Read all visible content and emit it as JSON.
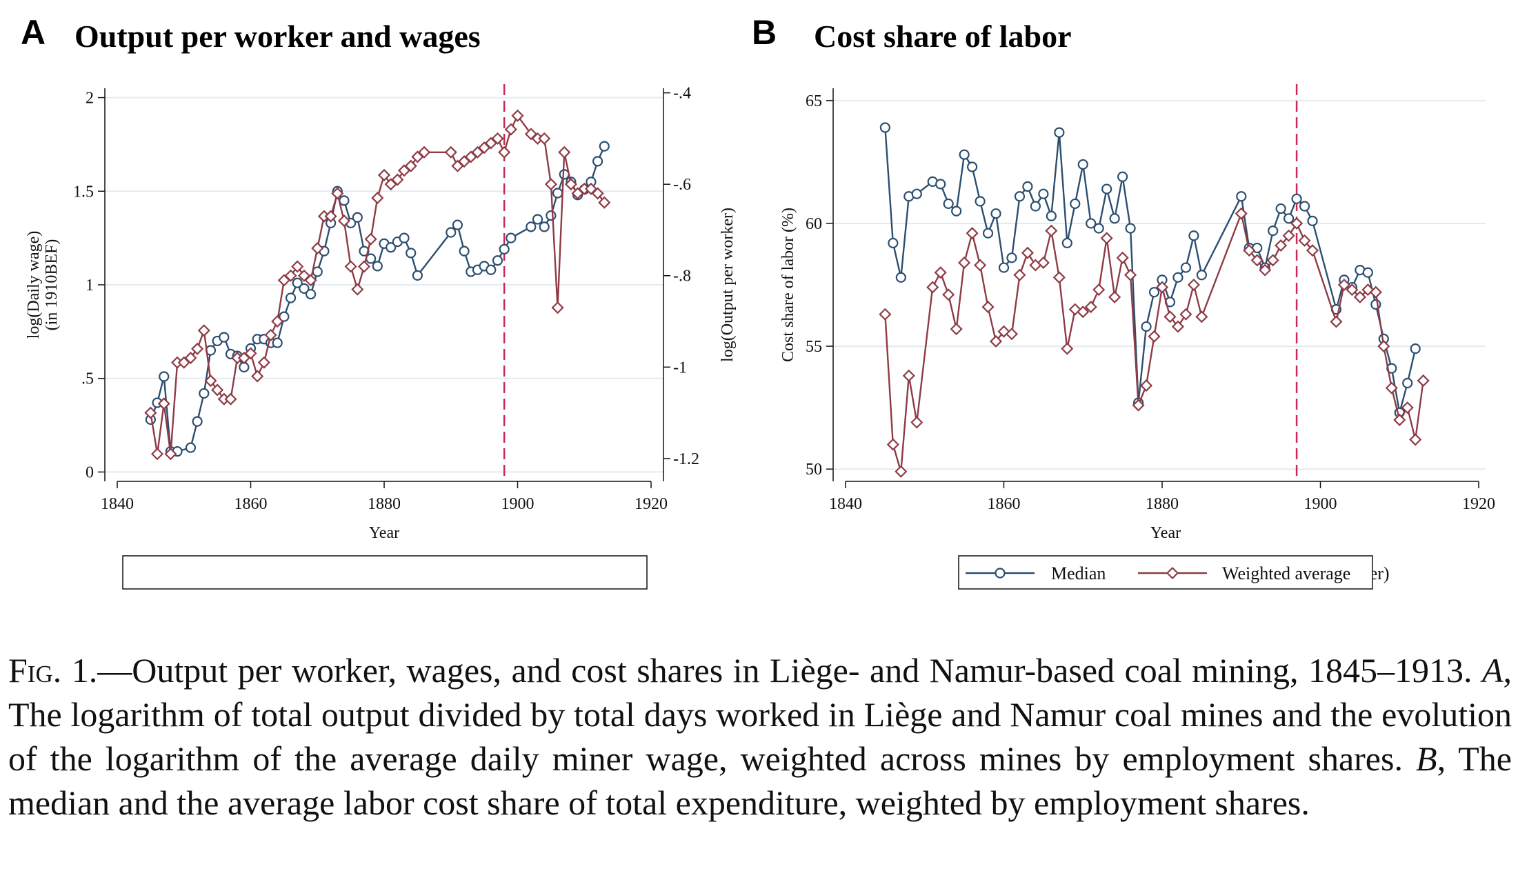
{
  "colors": {
    "blue": "#2b4e70",
    "red": "#8e3b45",
    "vline": "#cc2955",
    "grid": "#e3ebf0"
  },
  "chart_data": [
    {
      "type": "line",
      "panel_letter": "A",
      "title": "Output per worker and wages",
      "xlabel": "Year",
      "ylabel_left_line1": "log(Daily wage)",
      "ylabel_left_line2": "(in 1910BEF)",
      "ylabel_right": "log(Output per worker)",
      "xlim": [
        1840,
        1920
      ],
      "ylim_left": [
        -0.05,
        2.05
      ],
      "ylim_right": [
        -1.25,
        -0.39
      ],
      "x_ticks": [
        "1840",
        "1860",
        "1880",
        "1900",
        "1920"
      ],
      "y_ticks_left": [
        "0",
        ".5",
        "1",
        "1.5",
        "2"
      ],
      "y_ticks_right": [
        "-1.2",
        "-1",
        "-.8",
        "-.6",
        "-.4"
      ],
      "vline_x": 1898,
      "grid": true,
      "legend_position": "bottom",
      "series": [
        {
          "name": "log(Daily wage)",
          "axis": "left",
          "color": "blue",
          "marker": "circle",
          "points": [
            [
              1845,
              0.28
            ],
            [
              1846,
              0.37
            ],
            [
              1847,
              0.51
            ],
            [
              1848,
              0.11
            ],
            [
              1849,
              0.11
            ],
            [
              1851,
              0.13
            ],
            [
              1852,
              0.27
            ],
            [
              1853,
              0.42
            ],
            [
              1854,
              0.65
            ],
            [
              1855,
              0.7
            ],
            [
              1856,
              0.72
            ],
            [
              1857,
              0.63
            ],
            [
              1858,
              0.62
            ],
            [
              1859,
              0.56
            ],
            [
              1860,
              0.66
            ],
            [
              1861,
              0.71
            ],
            [
              1862,
              0.71
            ],
            [
              1863,
              0.69
            ],
            [
              1864,
              0.69
            ],
            [
              1865,
              0.83
            ],
            [
              1866,
              0.93
            ],
            [
              1867,
              1.01
            ],
            [
              1868,
              0.98
            ],
            [
              1869,
              0.95
            ],
            [
              1870,
              1.07
            ],
            [
              1871,
              1.18
            ],
            [
              1872,
              1.33
            ],
            [
              1873,
              1.5
            ],
            [
              1874,
              1.45
            ],
            [
              1875,
              1.33
            ],
            [
              1876,
              1.36
            ],
            [
              1877,
              1.18
            ],
            [
              1878,
              1.14
            ],
            [
              1879,
              1.1
            ],
            [
              1880,
              1.22
            ],
            [
              1881,
              1.2
            ],
            [
              1882,
              1.23
            ],
            [
              1883,
              1.25
            ],
            [
              1884,
              1.17
            ],
            [
              1885,
              1.05
            ],
            [
              1890,
              1.28
            ],
            [
              1891,
              1.32
            ],
            [
              1892,
              1.18
            ],
            [
              1893,
              1.07
            ],
            [
              1894,
              1.08
            ],
            [
              1895,
              1.1
            ],
            [
              1896,
              1.08
            ],
            [
              1897,
              1.13
            ],
            [
              1898,
              1.19
            ],
            [
              1899,
              1.25
            ],
            [
              1902,
              1.31
            ],
            [
              1903,
              1.35
            ],
            [
              1904,
              1.31
            ],
            [
              1905,
              1.37
            ],
            [
              1906,
              1.49
            ],
            [
              1907,
              1.59
            ],
            [
              1908,
              1.55
            ],
            [
              1909,
              1.48
            ],
            [
              1910,
              1.51
            ],
            [
              1911,
              1.55
            ],
            [
              1912,
              1.66
            ],
            [
              1913,
              1.74
            ]
          ]
        },
        {
          "name": "log(Output per worker)",
          "axis": "right",
          "color": "red",
          "marker": "diamond",
          "points": [
            [
              1845,
              -1.1
            ],
            [
              1846,
              -1.19
            ],
            [
              1847,
              -1.08
            ],
            [
              1848,
              -1.19
            ],
            [
              1849,
              -0.99
            ],
            [
              1850,
              -0.99
            ],
            [
              1851,
              -0.98
            ],
            [
              1852,
              -0.96
            ],
            [
              1853,
              -0.92
            ],
            [
              1854,
              -1.03
            ],
            [
              1855,
              -1.05
            ],
            [
              1856,
              -1.07
            ],
            [
              1857,
              -1.07
            ],
            [
              1858,
              -0.98
            ],
            [
              1859,
              -0.98
            ],
            [
              1860,
              -0.97
            ],
            [
              1861,
              -1.02
            ],
            [
              1862,
              -0.99
            ],
            [
              1863,
              -0.93
            ],
            [
              1864,
              -0.9
            ],
            [
              1865,
              -0.81
            ],
            [
              1866,
              -0.8
            ],
            [
              1867,
              -0.78
            ],
            [
              1868,
              -0.8
            ],
            [
              1869,
              -0.81
            ],
            [
              1870,
              -0.74
            ],
            [
              1871,
              -0.67
            ],
            [
              1872,
              -0.67
            ],
            [
              1873,
              -0.62
            ],
            [
              1874,
              -0.68
            ],
            [
              1875,
              -0.78
            ],
            [
              1876,
              -0.83
            ],
            [
              1877,
              -0.78
            ],
            [
              1878,
              -0.72
            ],
            [
              1879,
              -0.63
            ],
            [
              1880,
              -0.58
            ],
            [
              1881,
              -0.6
            ],
            [
              1882,
              -0.59
            ],
            [
              1883,
              -0.57
            ],
            [
              1884,
              -0.56
            ],
            [
              1885,
              -0.54
            ],
            [
              1886,
              -0.53
            ],
            [
              1890,
              -0.53
            ],
            [
              1891,
              -0.56
            ],
            [
              1892,
              -0.55
            ],
            [
              1893,
              -0.54
            ],
            [
              1894,
              -0.53
            ],
            [
              1895,
              -0.52
            ],
            [
              1896,
              -0.51
            ],
            [
              1897,
              -0.5
            ],
            [
              1898,
              -0.53
            ],
            [
              1899,
              -0.48
            ],
            [
              1900,
              -0.45
            ],
            [
              1902,
              -0.49
            ],
            [
              1903,
              -0.5
            ],
            [
              1904,
              -0.5
            ],
            [
              1905,
              -0.6
            ],
            [
              1906,
              -0.87
            ],
            [
              1907,
              -0.53
            ],
            [
              1908,
              -0.6
            ],
            [
              1909,
              -0.62
            ],
            [
              1910,
              -0.61
            ],
            [
              1911,
              -0.61
            ],
            [
              1912,
              -0.62
            ],
            [
              1913,
              -0.64
            ]
          ]
        }
      ]
    },
    {
      "type": "line",
      "panel_letter": "B",
      "title": "Cost share of labor",
      "xlabel": "Year",
      "ylabel": "Cost share of labor (%)",
      "xlim": [
        1840,
        1920
      ],
      "ylim": [
        49.5,
        65.5
      ],
      "x_ticks": [
        "1840",
        "1860",
        "1880",
        "1900",
        "1920"
      ],
      "y_ticks": [
        "50",
        "55",
        "60",
        "65"
      ],
      "vline_x": 1897,
      "grid": true,
      "legend_position": "bottom",
      "series": [
        {
          "name": "Median",
          "color": "blue",
          "marker": "circle",
          "points": [
            [
              1845,
              63.9
            ],
            [
              1846,
              59.2
            ],
            [
              1847,
              57.8
            ],
            [
              1848,
              61.1
            ],
            [
              1849,
              61.2
            ],
            [
              1851,
              61.7
            ],
            [
              1852,
              61.6
            ],
            [
              1853,
              60.8
            ],
            [
              1854,
              60.5
            ],
            [
              1855,
              62.8
            ],
            [
              1856,
              62.3
            ],
            [
              1857,
              60.9
            ],
            [
              1858,
              59.6
            ],
            [
              1859,
              60.4
            ],
            [
              1860,
              58.2
            ],
            [
              1861,
              58.6
            ],
            [
              1862,
              61.1
            ],
            [
              1863,
              61.5
            ],
            [
              1864,
              60.7
            ],
            [
              1865,
              61.2
            ],
            [
              1866,
              60.3
            ],
            [
              1867,
              63.7
            ],
            [
              1868,
              59.2
            ],
            [
              1869,
              60.8
            ],
            [
              1870,
              62.4
            ],
            [
              1871,
              60.0
            ],
            [
              1872,
              59.8
            ],
            [
              1873,
              61.4
            ],
            [
              1874,
              60.2
            ],
            [
              1875,
              61.9
            ],
            [
              1876,
              59.8
            ],
            [
              1877,
              52.7
            ],
            [
              1878,
              55.8
            ],
            [
              1879,
              57.2
            ],
            [
              1880,
              57.7
            ],
            [
              1881,
              56.8
            ],
            [
              1882,
              57.8
            ],
            [
              1883,
              58.2
            ],
            [
              1884,
              59.5
            ],
            [
              1885,
              57.9
            ],
            [
              1890,
              61.1
            ],
            [
              1891,
              59.0
            ],
            [
              1892,
              59.0
            ],
            [
              1893,
              58.2
            ],
            [
              1894,
              59.7
            ],
            [
              1895,
              60.6
            ],
            [
              1896,
              60.2
            ],
            [
              1897,
              61.0
            ],
            [
              1898,
              60.7
            ],
            [
              1899,
              60.1
            ],
            [
              1902,
              56.5
            ],
            [
              1903,
              57.7
            ],
            [
              1904,
              57.4
            ],
            [
              1905,
              58.1
            ],
            [
              1906,
              58.0
            ],
            [
              1907,
              56.7
            ],
            [
              1908,
              55.3
            ],
            [
              1909,
              54.1
            ],
            [
              1910,
              52.3
            ],
            [
              1911,
              53.5
            ],
            [
              1912,
              54.9
            ]
          ]
        },
        {
          "name": "Weighted average",
          "color": "red",
          "marker": "diamond",
          "points": [
            [
              1845,
              56.3
            ],
            [
              1846,
              51.0
            ],
            [
              1847,
              49.9
            ],
            [
              1848,
              53.8
            ],
            [
              1849,
              51.9
            ],
            [
              1851,
              57.4
            ],
            [
              1852,
              58.0
            ],
            [
              1853,
              57.1
            ],
            [
              1854,
              55.7
            ],
            [
              1855,
              58.4
            ],
            [
              1856,
              59.6
            ],
            [
              1857,
              58.3
            ],
            [
              1858,
              56.6
            ],
            [
              1859,
              55.2
            ],
            [
              1860,
              55.6
            ],
            [
              1861,
              55.5
            ],
            [
              1862,
              57.9
            ],
            [
              1863,
              58.8
            ],
            [
              1864,
              58.3
            ],
            [
              1865,
              58.4
            ],
            [
              1866,
              59.7
            ],
            [
              1867,
              57.8
            ],
            [
              1868,
              54.9
            ],
            [
              1869,
              56.5
            ],
            [
              1870,
              56.4
            ],
            [
              1871,
              56.6
            ],
            [
              1872,
              57.3
            ],
            [
              1873,
              59.4
            ],
            [
              1874,
              57.0
            ],
            [
              1875,
              58.6
            ],
            [
              1876,
              57.9
            ],
            [
              1877,
              52.6
            ],
            [
              1878,
              53.4
            ],
            [
              1879,
              55.4
            ],
            [
              1880,
              57.4
            ],
            [
              1881,
              56.2
            ],
            [
              1882,
              55.8
            ],
            [
              1883,
              56.3
            ],
            [
              1884,
              57.5
            ],
            [
              1885,
              56.2
            ],
            [
              1890,
              60.4
            ],
            [
              1891,
              58.9
            ],
            [
              1892,
              58.5
            ],
            [
              1893,
              58.1
            ],
            [
              1894,
              58.5
            ],
            [
              1895,
              59.1
            ],
            [
              1896,
              59.5
            ],
            [
              1897,
              60.0
            ],
            [
              1898,
              59.3
            ],
            [
              1899,
              58.9
            ],
            [
              1902,
              56.0
            ],
            [
              1903,
              57.5
            ],
            [
              1904,
              57.3
            ],
            [
              1905,
              57.0
            ],
            [
              1906,
              57.3
            ],
            [
              1907,
              57.2
            ],
            [
              1908,
              55.0
            ],
            [
              1909,
              53.3
            ],
            [
              1910,
              52.0
            ],
            [
              1911,
              52.5
            ],
            [
              1912,
              51.2
            ],
            [
              1913,
              53.6
            ]
          ]
        }
      ]
    }
  ],
  "caption": {
    "fig_label": "Fig. 1.",
    "text_1": "—Output per worker, wages, and cost shares in Liège- and Namur-based coal mining, 1845–1913. ",
    "a_label": "A",
    "text_2": ", The logarithm of total output divided by total days worked in Liège and Namur coal mines and the evolution of the logarithm of the average daily miner wage, weighted across mines by employment shares. ",
    "b_label": "B",
    "text_3": ", The median and the average labor cost share of total expenditure, weighted by employment shares."
  }
}
